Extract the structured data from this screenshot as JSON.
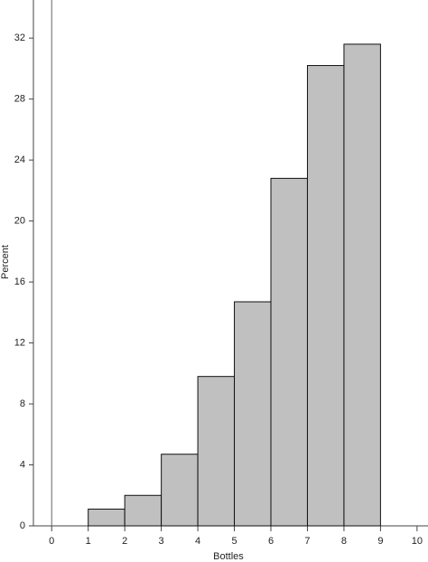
{
  "chart_data": {
    "type": "histogram",
    "xlabel": "Bottles",
    "ylabel": "Percent",
    "bins": [
      1,
      2,
      3,
      4,
      5,
      6,
      7,
      8,
      9
    ],
    "values": [
      1.1,
      2.0,
      4.7,
      9.8,
      14.7,
      22.8,
      30.2,
      31.6
    ],
    "color": "#c0c0c0",
    "xlim": [
      -0.5,
      10.3
    ],
    "xticks": [
      0,
      1,
      2,
      3,
      4,
      5,
      6,
      7,
      8,
      9,
      10
    ],
    "ylim": [
      0,
      34.5
    ],
    "yticks": [
      0,
      4,
      8,
      12,
      16,
      20,
      24,
      28,
      32
    ],
    "reference_x": 0
  }
}
